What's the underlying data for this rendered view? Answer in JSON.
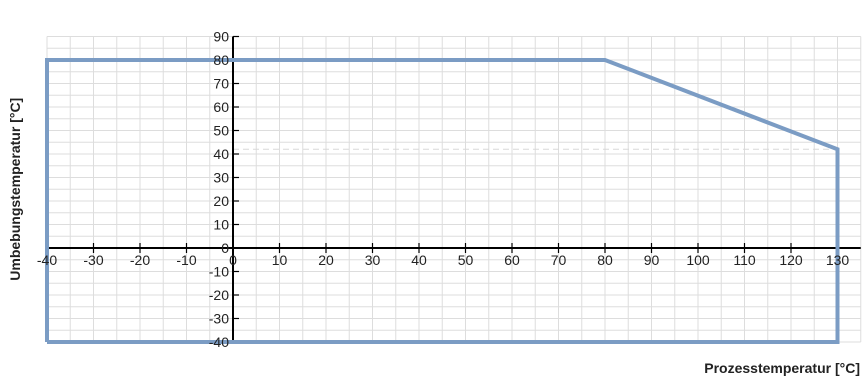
{
  "chart_data": {
    "type": "area",
    "title": "",
    "xlabel": "Prozesstemperatur [°C]",
    "ylabel": "Umbebungstemperatur [°C]",
    "xlim": [
      -40,
      135
    ],
    "ylim": [
      -40,
      90
    ],
    "x_ticks": [
      -40,
      -30,
      -20,
      -10,
      0,
      10,
      20,
      30,
      40,
      50,
      60,
      70,
      80,
      90,
      100,
      110,
      120,
      130
    ],
    "y_ticks": [
      -40,
      -30,
      -20,
      -10,
      0,
      10,
      20,
      30,
      40,
      50,
      60,
      70,
      80,
      90
    ],
    "grid": true,
    "line_color": "#7b9cc4",
    "series": [
      {
        "x": [
          -40,
          -40,
          80,
          130,
          130,
          -40
        ],
        "y": [
          -40,
          80,
          80,
          42,
          -40,
          -40
        ]
      }
    ],
    "reference_line_y": 42
  }
}
